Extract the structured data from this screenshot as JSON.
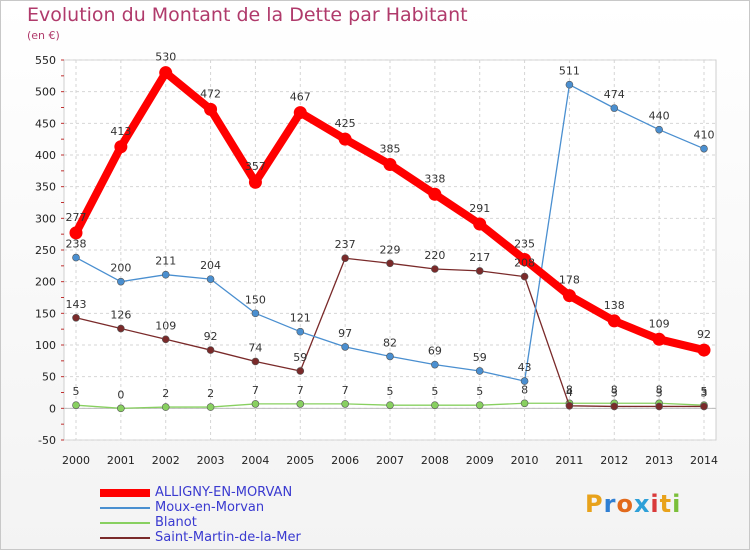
{
  "header": {
    "title": "Evolution du Montant de la Dette par Habitant",
    "subtitle": "(en €)"
  },
  "logo": {
    "text": "Proxiti",
    "letter_colors": [
      "#e8a21b",
      "#2f7fd3",
      "#e26a1c",
      "#2ea0d8",
      "#d93a3a",
      "#e8a21b",
      "#7bbf3a"
    ]
  },
  "chart_data": {
    "type": "line",
    "title": "Evolution du Montant de la Dette par Habitant",
    "subtitle": "(en €)",
    "xlabel": "",
    "ylabel": "",
    "ylim": [
      -50,
      550
    ],
    "yticks": [
      -50,
      0,
      50,
      100,
      150,
      200,
      250,
      300,
      350,
      400,
      450,
      500,
      550
    ],
    "grid": true,
    "legend_position": "bottom-left",
    "x": [
      "2000",
      "2001",
      "2002",
      "2003",
      "2004",
      "2005",
      "2006",
      "2007",
      "2008",
      "2009",
      "2010",
      "2011",
      "2012",
      "2013",
      "2014"
    ],
    "series": [
      {
        "name": "ALLIGNY-EN-MORVAN",
        "color": "#ff0000",
        "values": [
          277,
          413,
          530,
          472,
          357,
          467,
          425,
          385,
          338,
          291,
          235,
          178,
          138,
          109,
          92
        ],
        "labels": [
          "277",
          "413",
          "530",
          "472",
          "357",
          "467",
          "425",
          "385",
          "338",
          "291",
          "235",
          "178",
          "138",
          "109",
          "92"
        ]
      },
      {
        "name": "Moux-en-Morvan",
        "color": "#4a8fd0",
        "values": [
          238,
          200,
          211,
          204,
          150,
          121,
          97,
          82,
          69,
          59,
          43,
          511,
          474,
          440,
          410
        ],
        "labels": [
          "238",
          "200",
          "211",
          "204",
          "150",
          "121",
          "97",
          "82",
          "69",
          "59",
          "43",
          "511",
          "474",
          "440",
          "410"
        ]
      },
      {
        "name": "Blanot",
        "color": "#88d060",
        "values": [
          5,
          0,
          2,
          2,
          7,
          7,
          7,
          5,
          5,
          5,
          8,
          8,
          8,
          8,
          5
        ],
        "labels": [
          "5",
          "0",
          "2",
          "2",
          "7",
          "7",
          "7",
          "5",
          "5",
          "5",
          "8",
          "8",
          "8",
          "8",
          "5"
        ]
      },
      {
        "name": "Saint-Martin-de-la-Mer",
        "color": "#7a2a2a",
        "values": [
          143,
          126,
          109,
          92,
          74,
          59,
          237,
          229,
          220,
          217,
          208,
          4,
          3,
          3,
          3
        ],
        "labels": [
          "143",
          "126",
          "109",
          "92",
          "74",
          "59",
          "237",
          "229",
          "220",
          "217",
          "208",
          "4",
          "3",
          "3",
          "3"
        ]
      }
    ]
  }
}
